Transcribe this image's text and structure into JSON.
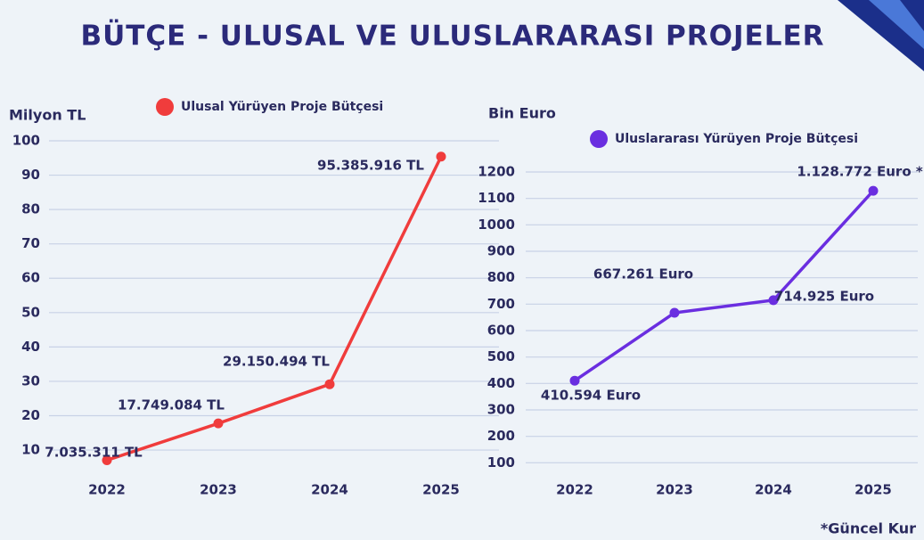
{
  "title": "BÜTÇE - ULUSAL VE ULUSLARARASI PROJELER",
  "footnote": "*Güncel Kur",
  "chart_data": [
    {
      "type": "line",
      "y_label": "Milyon TL",
      "categories": [
        "2022",
        "2023",
        "2024",
        "2025"
      ],
      "series": [
        {
          "name": "Ulusal Yürüyen Proje Bütçesi",
          "color": "#f03c3c",
          "values": [
            7.035311,
            17.749084,
            29.150494,
            95.385916
          ],
          "value_labels": [
            "7.035.311 TL",
            "17.749.084 TL",
            "29.150.494 TL",
            "95.385.916 TL"
          ]
        }
      ],
      "ylim": [
        0,
        100
      ],
      "yticks": [
        10,
        20,
        30,
        40,
        50,
        60,
        70,
        80,
        90,
        100
      ],
      "grid": true
    },
    {
      "type": "line",
      "y_label": "Bin Euro",
      "categories": [
        "2022",
        "2023",
        "2024",
        "2025"
      ],
      "series": [
        {
          "name": "Uluslararası Yürüyen Proje Bütçesi",
          "color": "#6a2ee0",
          "values": [
            410.594,
            667.261,
            714.925,
            1128.772
          ],
          "value_labels": [
            "410.594 Euro",
            "667.261 Euro",
            "714.925 Euro",
            "1.128.772 Euro *"
          ]
        }
      ],
      "ylim": [
        0,
        1200
      ],
      "yticks": [
        100,
        200,
        300,
        400,
        500,
        600,
        700,
        800,
        900,
        1000,
        1100,
        1200
      ],
      "grid": true
    }
  ]
}
